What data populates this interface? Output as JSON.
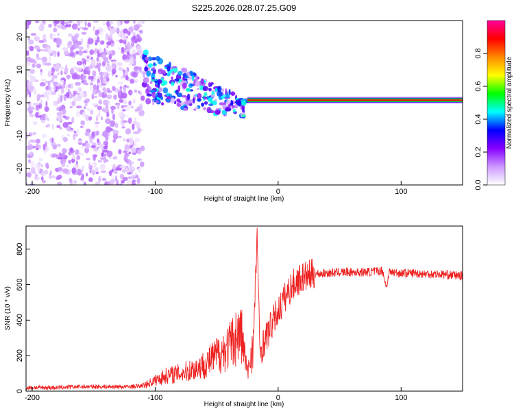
{
  "title": "S225.2026.028.07.25.G09",
  "chart_data": [
    {
      "type": "heatmap",
      "name": "spectrogram",
      "xlabel": "Height of straight line (km)",
      "ylabel": "Frequency (Hz)",
      "xlim": [
        -205,
        150
      ],
      "ylim": [
        -25,
        25
      ],
      "xticks": [
        -200,
        -100,
        0,
        100
      ],
      "yticks": [
        -20,
        -10,
        0,
        10,
        20
      ],
      "colorbar": {
        "label": "Normalized spectral amplitude",
        "range": [
          0,
          1
        ],
        "ticks": [
          0.0,
          0.2,
          0.4,
          0.6,
          0.8
        ],
        "colors": [
          "#ffffff",
          "#cc99ff",
          "#8800ff",
          "#0000ff",
          "#00ffff",
          "#00ff00",
          "#ffff00",
          "#ff8800",
          "#ff0000",
          "#ff0099"
        ]
      },
      "features": [
        {
          "name": "noise region",
          "x_range": [
            -205,
            -110
          ],
          "freq_range": [
            -25,
            25
          ],
          "amplitude": 0.1
        },
        {
          "name": "scattered signal",
          "x_range": [
            -110,
            -25
          ],
          "freq_range": [
            -20,
            15
          ],
          "amplitude": 0.3
        },
        {
          "name": "carrier line",
          "x_range": [
            -25,
            150
          ],
          "freq": 0.8,
          "amplitude": 0.9
        }
      ]
    },
    {
      "type": "line",
      "name": "snr",
      "xlabel": "Height of straight line (km)",
      "ylabel": "SNR (10 * v/v)",
      "xlim": [
        -205,
        150
      ],
      "ylim": [
        0,
        930
      ],
      "xticks": [
        -200,
        -100,
        0,
        100
      ],
      "yticks": [
        0,
        200,
        400,
        600,
        800
      ],
      "color": "#ee2222",
      "series": [
        {
          "name": "SNR",
          "x": [
            -205,
            -180,
            -160,
            -140,
            -120,
            -110,
            -100,
            -90,
            -80,
            -70,
            -60,
            -50,
            -40,
            -35,
            -30,
            -25,
            -20,
            -17,
            -15,
            -10,
            -5,
            0,
            5,
            10,
            15,
            20,
            25,
            30,
            40,
            50,
            60,
            70,
            80,
            85,
            88,
            90,
            100,
            110,
            120,
            130,
            140,
            150
          ],
          "y": [
            20,
            20,
            25,
            25,
            25,
            30,
            60,
            90,
            100,
            120,
            150,
            200,
            250,
            300,
            330,
            100,
            280,
            900,
            220,
            300,
            380,
            450,
            520,
            580,
            620,
            640,
            650,
            660,
            665,
            670,
            670,
            670,
            675,
            680,
            580,
            670,
            665,
            665,
            660,
            660,
            655,
            650
          ]
        }
      ]
    }
  ]
}
